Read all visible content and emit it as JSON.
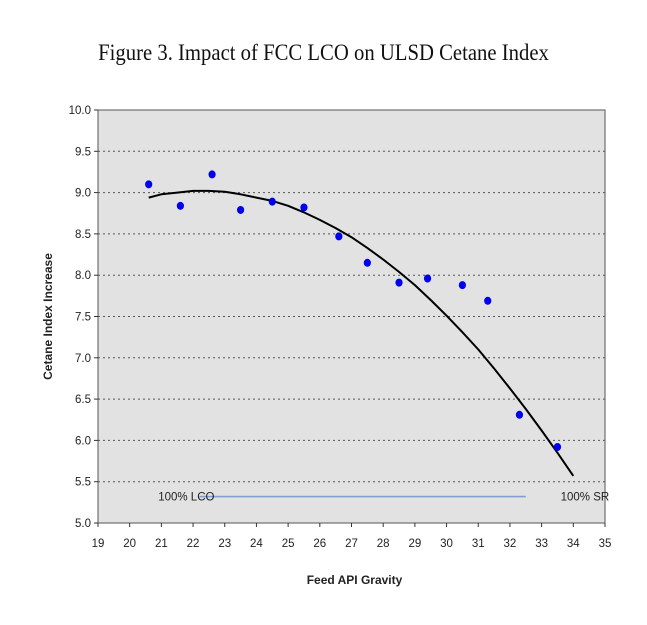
{
  "chart_data": {
    "type": "scatter",
    "title": "Figure 3. Impact of FCC LCO on ULSD Cetane Index",
    "xlabel": "Feed API Gravity",
    "ylabel": "Cetane Index Increase",
    "xlim": [
      19,
      35
    ],
    "ylim": [
      5.0,
      10.0
    ],
    "x_ticks": [
      "19",
      "20",
      "21",
      "22",
      "23",
      "24",
      "25",
      "26",
      "27",
      "28",
      "29",
      "30",
      "31",
      "32",
      "33",
      "34",
      "35"
    ],
    "y_ticks": [
      "5.0",
      "5.5",
      "6.0",
      "6.5",
      "7.0",
      "7.5",
      "8.0",
      "8.5",
      "9.0",
      "9.5",
      "10.0"
    ],
    "grid": "horizontal-dashed",
    "legend": "none",
    "series": [
      {
        "type": "scatter",
        "color": "#0000ee",
        "points": [
          {
            "x": 20.6,
            "y": 9.1
          },
          {
            "x": 21.6,
            "y": 8.84
          },
          {
            "x": 22.6,
            "y": 9.22
          },
          {
            "x": 23.5,
            "y": 8.79
          },
          {
            "x": 24.5,
            "y": 8.89
          },
          {
            "x": 25.5,
            "y": 8.82
          },
          {
            "x": 26.6,
            "y": 8.47
          },
          {
            "x": 27.5,
            "y": 8.15
          },
          {
            "x": 28.5,
            "y": 7.91
          },
          {
            "x": 29.4,
            "y": 7.96
          },
          {
            "x": 30.5,
            "y": 7.88
          },
          {
            "x": 31.3,
            "y": 7.69
          },
          {
            "x": 32.3,
            "y": 6.31
          },
          {
            "x": 33.5,
            "y": 5.92
          }
        ]
      },
      {
        "type": "line",
        "color": "#000000",
        "points": [
          {
            "x": 20.6,
            "y": 8.94
          },
          {
            "x": 21.0,
            "y": 8.98
          },
          {
            "x": 21.5,
            "y": 9.0
          },
          {
            "x": 22.0,
            "y": 9.02
          },
          {
            "x": 22.5,
            "y": 9.02
          },
          {
            "x": 23.0,
            "y": 9.01
          },
          {
            "x": 23.5,
            "y": 8.98
          },
          {
            "x": 24.0,
            "y": 8.94
          },
          {
            "x": 24.5,
            "y": 8.9
          },
          {
            "x": 25.0,
            "y": 8.84
          },
          {
            "x": 25.5,
            "y": 8.76
          },
          {
            "x": 26.0,
            "y": 8.67
          },
          {
            "x": 26.5,
            "y": 8.57
          },
          {
            "x": 27.0,
            "y": 8.46
          },
          {
            "x": 27.5,
            "y": 8.33
          },
          {
            "x": 28.0,
            "y": 8.19
          },
          {
            "x": 28.5,
            "y": 8.04
          },
          {
            "x": 29.0,
            "y": 7.88
          },
          {
            "x": 29.5,
            "y": 7.7
          },
          {
            "x": 30.0,
            "y": 7.51
          },
          {
            "x": 30.5,
            "y": 7.31
          },
          {
            "x": 31.0,
            "y": 7.1
          },
          {
            "x": 31.5,
            "y": 6.87
          },
          {
            "x": 32.0,
            "y": 6.63
          },
          {
            "x": 32.5,
            "y": 6.38
          },
          {
            "x": 33.0,
            "y": 6.12
          },
          {
            "x": 33.5,
            "y": 5.85
          },
          {
            "x": 34.0,
            "y": 5.57
          }
        ]
      },
      {
        "type": "line",
        "color": "#7f9fd0",
        "points": [
          {
            "x": 22.2,
            "y": 5.32
          },
          {
            "x": 32.5,
            "y": 5.32
          }
        ]
      }
    ],
    "annotations": [
      {
        "text": "100% LCO",
        "x": 20.9,
        "y": 5.32
      },
      {
        "text": "100% SR",
        "x": 33.6,
        "y": 5.32
      }
    ],
    "colors": {
      "plot_background": "#e2e2e2",
      "marker": "#0000ee",
      "curve": "#000000",
      "reference_line": "#7f9fd0"
    }
  }
}
